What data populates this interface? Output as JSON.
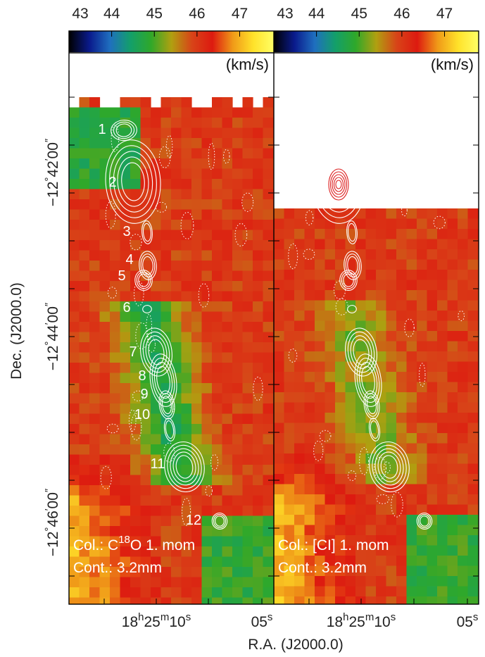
{
  "chart_data": [
    {
      "type": "heatmap",
      "panel": "left",
      "colorbar": {
        "ticks": [
          "43",
          "44",
          "45",
          "46",
          "47"
        ],
        "range": [
          43,
          47.8
        ],
        "unit_label": "(km/s)",
        "colormap": [
          "#000000",
          "#0a1a8c",
          "#1f6fbf",
          "#139f6a",
          "#2fa82a",
          "#b0a010",
          "#d84418",
          "#dd1a10",
          "#f09a18",
          "#ffe22a",
          "#ffff66"
        ]
      },
      "overlay_lines": [
        "Col.: C",
        "18",
        "O 1. mom",
        "Cont.: 3.2mm"
      ],
      "clump_labels": [
        "1",
        "2",
        "3",
        "4",
        "5",
        "6",
        "7",
        "8",
        "9",
        "10",
        "11",
        "12"
      ]
    },
    {
      "type": "heatmap",
      "panel": "right",
      "colorbar": {
        "ticks": [
          "43",
          "44",
          "45",
          "46",
          "47"
        ],
        "range": [
          43,
          47.8
        ],
        "unit_label": "(km/s)"
      },
      "overlay_lines": [
        "Col.: [CI] 1. mom",
        "Cont.: 3.2mm"
      ]
    }
  ],
  "axes": {
    "xlabel": "R.A. (J2000.0)",
    "ylabel": "Dec. (J2000.0)",
    "x_ticks": [
      {
        "main": "18",
        "sup1": "h",
        "mid": "25",
        "sup2": "m",
        "end": "10",
        "sup3": "s"
      },
      {
        "main": "05",
        "sup3": "s"
      }
    ],
    "y_ticks": [
      {
        "deg": "−12°42′00″"
      },
      {
        "deg": "−12°44′00″"
      },
      {
        "deg": "−12°46′00″"
      }
    ],
    "y_tick_parts": [
      {
        "a": "−12",
        "b": "42",
        "c": "00"
      },
      {
        "a": "−12",
        "b": "44",
        "c": "00"
      },
      {
        "a": "−12",
        "b": "46",
        "c": "00"
      }
    ]
  }
}
